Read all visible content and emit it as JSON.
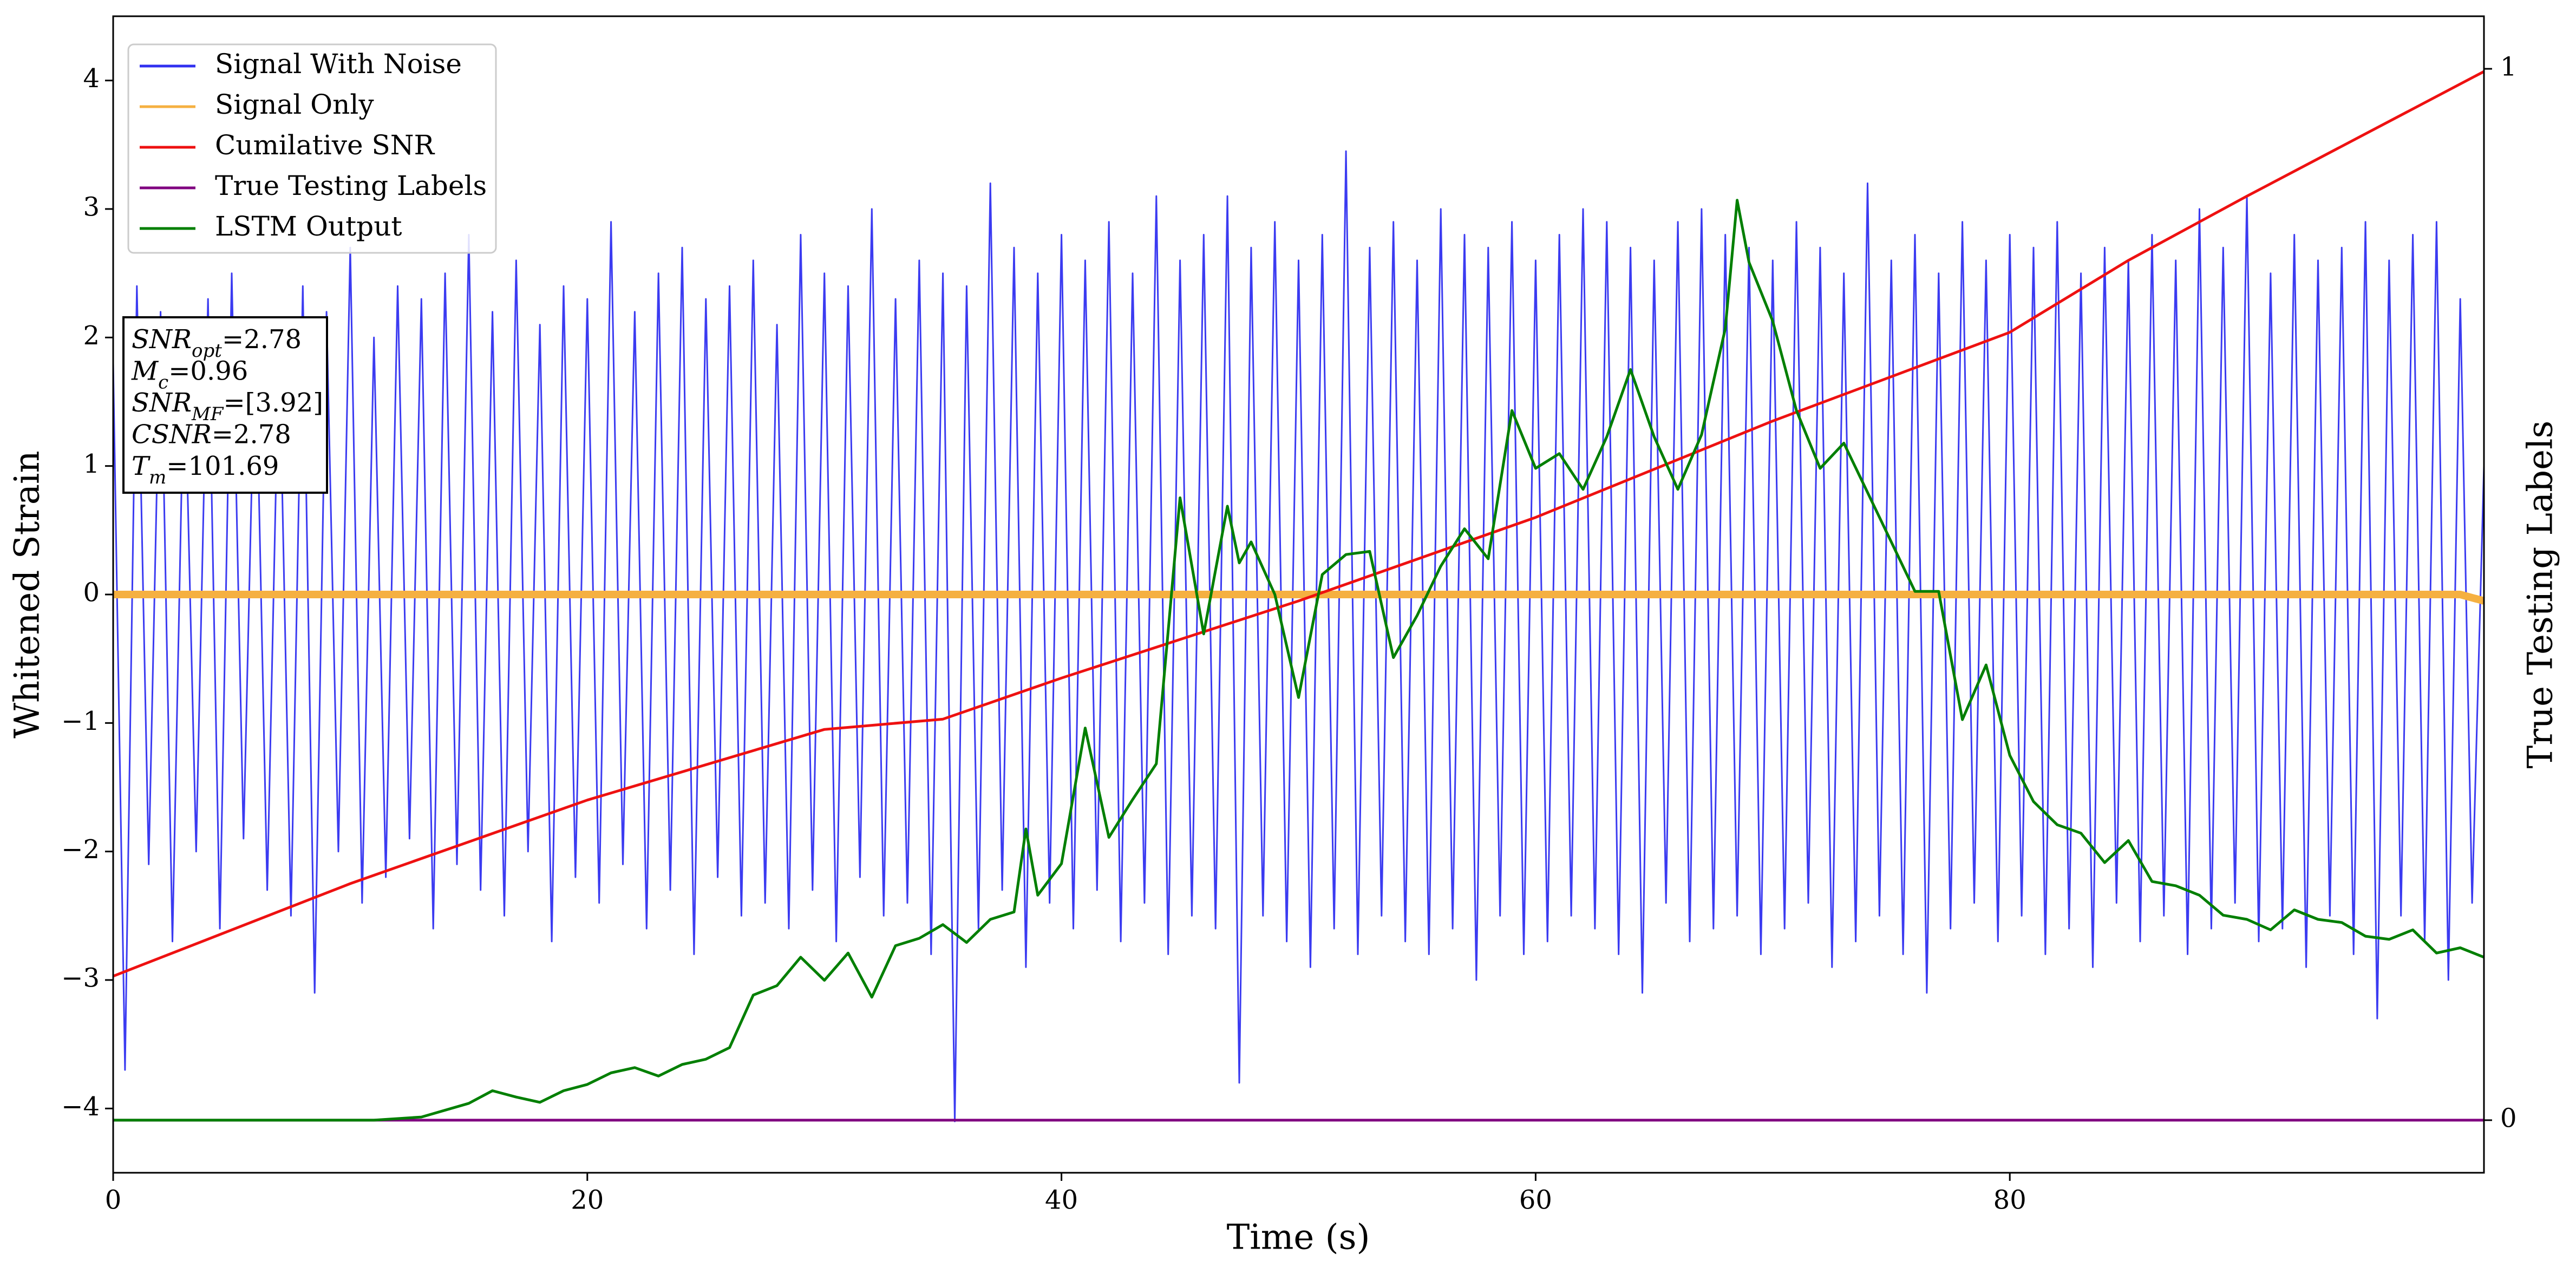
{
  "chart_data": {
    "type": "line",
    "xlabel": "Time (s)",
    "ylabel": "Whitened Strain",
    "y2label": "True Testing Labels",
    "xlim": [
      0,
      100
    ],
    "ylim": [
      -4.5,
      4.5
    ],
    "y2lim": [
      -0.05,
      1.05
    ],
    "xticks": [
      0,
      20,
      40,
      60,
      80
    ],
    "yticks": [
      {
        "value": -4,
        "label": "−4"
      },
      {
        "value": -3,
        "label": "−3"
      },
      {
        "value": -2,
        "label": "−2"
      },
      {
        "value": -1,
        "label": "−1"
      },
      0,
      1,
      2,
      3,
      4
    ],
    "y2ticks": [
      0,
      1
    ],
    "legend": "upper left",
    "annotation": [
      {
        "main": "SNR",
        "sub": "opt",
        "rest": "=2.78"
      },
      {
        "main": "M",
        "sub": "c",
        "rest": "=0.96"
      },
      {
        "main": "SNR",
        "sub": "MF",
        "rest": "=[3.92]"
      },
      {
        "main": "CSNR",
        "sub": null,
        "rest": "=2.78"
      },
      {
        "main": "T",
        "sub": "m",
        "rest": "=101.69"
      }
    ],
    "series": [
      {
        "name": "Signal With Noise",
        "color": "#3030f0",
        "axis": "y",
        "x": [
          0,
          0.5,
          1,
          1.5,
          2,
          2.5,
          3,
          3.5,
          4,
          4.5,
          5,
          5.5,
          6,
          6.5,
          7,
          7.5,
          8,
          8.5,
          9,
          9.5,
          10,
          10.5,
          11,
          11.5,
          12,
          12.5,
          13,
          13.5,
          14,
          14.5,
          15,
          15.5,
          16,
          16.5,
          17,
          17.5,
          18,
          18.5,
          19,
          19.5,
          20,
          20.5,
          21,
          21.5,
          22,
          22.5,
          23,
          23.5,
          24,
          24.5,
          25,
          25.5,
          26,
          26.5,
          27,
          27.5,
          28,
          28.5,
          29,
          29.5,
          30,
          30.5,
          31,
          31.5,
          32,
          32.5,
          33,
          33.5,
          34,
          34.5,
          35,
          35.5,
          36,
          36.5,
          37,
          37.5,
          38,
          38.5,
          39,
          39.5,
          40,
          40.5,
          41,
          41.5,
          42,
          42.5,
          43,
          43.5,
          44,
          44.5,
          45,
          45.5,
          46,
          46.5,
          47,
          47.5,
          48,
          48.5,
          49,
          49.5,
          50,
          50.5,
          51,
          51.5,
          52,
          52.5,
          53,
          53.5,
          54,
          54.5,
          55,
          55.5,
          56,
          56.5,
          57,
          57.5,
          58,
          58.5,
          59,
          59.5,
          60,
          60.5,
          61,
          61.5,
          62,
          62.5,
          63,
          63.5,
          64,
          64.5,
          65,
          65.5,
          66,
          66.5,
          67,
          67.5,
          68,
          68.5,
          69,
          69.5,
          70,
          70.5,
          71,
          71.5,
          72,
          72.5,
          73,
          73.5,
          74,
          74.5,
          75,
          75.5,
          76,
          76.5,
          77,
          77.5,
          78,
          78.5,
          79,
          79.5,
          80,
          80.5,
          81,
          81.5,
          82,
          82.5,
          83,
          83.5,
          84,
          84.5,
          85,
          85.5,
          86,
          86.5,
          87,
          87.5,
          88,
          88.5,
          89,
          89.5,
          90,
          90.5,
          91,
          91.5,
          92,
          92.5,
          93,
          93.5,
          94,
          94.5,
          95,
          95.5,
          96,
          96.5,
          97,
          97.5,
          98,
          98.5,
          99,
          99.5,
          100
        ],
        "values": [
          1.8,
          -3.7,
          2.4,
          -2.1,
          2.2,
          -2.7,
          1.9,
          -2.0,
          2.3,
          -2.6,
          2.5,
          -1.9,
          2.1,
          -2.3,
          2.0,
          -2.5,
          2.4,
          -3.1,
          2.2,
          -2.0,
          2.7,
          -2.4,
          2.0,
          -2.2,
          2.4,
          -1.9,
          2.3,
          -2.6,
          2.5,
          -2.1,
          2.8,
          -2.3,
          2.2,
          -2.5,
          2.6,
          -2.0,
          2.1,
          -2.7,
          2.4,
          -2.2,
          2.3,
          -2.4,
          2.9,
          -2.1,
          2.2,
          -2.6,
          2.5,
          -2.3,
          2.7,
          -2.8,
          2.3,
          -2.2,
          2.4,
          -2.5,
          2.6,
          -2.4,
          2.1,
          -2.6,
          2.8,
          -2.3,
          2.5,
          -2.7,
          2.4,
          -2.2,
          3.0,
          -2.5,
          2.3,
          -2.4,
          2.6,
          -2.8,
          2.5,
          -4.1,
          2.4,
          -2.6,
          3.2,
          -2.3,
          2.7,
          -2.9,
          2.5,
          -2.4,
          2.8,
          -2.6,
          2.6,
          -2.3,
          2.9,
          -2.7,
          2.5,
          -2.4,
          3.1,
          -2.8,
          2.6,
          -2.5,
          2.8,
          -2.6,
          3.1,
          -3.8,
          2.7,
          -2.5,
          2.9,
          -2.7,
          2.6,
          -2.9,
          2.8,
          -2.6,
          3.45,
          -2.8,
          2.7,
          -2.5,
          2.9,
          -2.7,
          2.6,
          -2.8,
          3.0,
          -2.6,
          2.8,
          -3.0,
          2.7,
          -2.5,
          2.9,
          -2.8,
          2.6,
          -2.7,
          2.8,
          -2.5,
          3.0,
          -2.6,
          2.9,
          -2.8,
          2.7,
          -3.1,
          2.6,
          -2.4,
          2.9,
          -2.7,
          3.0,
          -2.6,
          2.8,
          -2.5,
          2.7,
          -2.8,
          2.6,
          -2.6,
          2.9,
          -2.4,
          2.7,
          -2.9,
          2.5,
          -2.7,
          3.2,
          -2.5,
          2.6,
          -2.8,
          2.8,
          -3.1,
          2.5,
          -2.6,
          2.9,
          -2.4,
          2.6,
          -2.7,
          2.8,
          -2.5,
          2.7,
          -2.8,
          2.9,
          -2.6,
          2.5,
          -2.9,
          2.7,
          -2.4,
          2.6,
          -2.7,
          2.8,
          -2.5,
          2.6,
          -2.8,
          3.0,
          -2.6,
          2.7,
          -2.4,
          3.1,
          -2.7,
          2.5,
          -2.6,
          2.8,
          -2.9,
          2.6,
          -2.5,
          2.7,
          -2.8,
          2.9,
          -3.3,
          2.6,
          -2.5,
          2.8,
          -2.7,
          2.9,
          -3.0,
          2.3,
          -2.4,
          1.0
        ]
      },
      {
        "name": "Signal Only",
        "color": "#f5b041",
        "axis": "y",
        "x": [
          0,
          50,
          99,
          100
        ],
        "values": [
          0,
          0,
          0,
          -0.05
        ]
      },
      {
        "name": "Cumilative SNR",
        "color": "#ee1111",
        "axis": "y",
        "x": [
          0,
          10,
          20,
          30,
          35,
          40,
          50,
          60,
          70,
          80,
          85,
          90,
          100
        ],
        "values": [
          -2.97,
          -2.25,
          -1.6,
          -1.05,
          -0.97,
          -0.65,
          -0.05,
          0.6,
          1.35,
          2.04,
          2.6,
          3.1,
          4.07
        ]
      },
      {
        "name": "True Testing Labels",
        "color": "#800080",
        "axis": "y2",
        "x": [
          0,
          100
        ],
        "values": [
          0,
          0
        ]
      },
      {
        "name": "LSTM Output",
        "color": "#007f00",
        "axis": "y2",
        "x": [
          0,
          11,
          13,
          15,
          16,
          17,
          18,
          19,
          20,
          21,
          22,
          23,
          24,
          25,
          26,
          27,
          28,
          29,
          30,
          31,
          32,
          33,
          34,
          35,
          36,
          37,
          38,
          38.5,
          39,
          40,
          41,
          42,
          43,
          44,
          45,
          46,
          47,
          47.5,
          48,
          49,
          50,
          51,
          52,
          53,
          54,
          55,
          56,
          57,
          58,
          59,
          60,
          61,
          62,
          63,
          64,
          65,
          66,
          67,
          68,
          68.5,
          69,
          70,
          71,
          72,
          73,
          74,
          75,
          76,
          77,
          78,
          79,
          80,
          81,
          82,
          83,
          84,
          85,
          86,
          87,
          88,
          89,
          90,
          91,
          92,
          93,
          94,
          95,
          96,
          97,
          98,
          99,
          100
        ],
        "values": [
          0,
          0,
          0.003,
          0.016,
          0.028,
          0.022,
          0.017,
          0.028,
          0.034,
          0.045,
          0.05,
          0.042,
          0.053,
          0.058,
          0.069,
          0.119,
          0.128,
          0.155,
          0.133,
          0.159,
          0.117,
          0.166,
          0.173,
          0.186,
          0.169,
          0.191,
          0.198,
          0.277,
          0.214,
          0.244,
          0.373,
          0.269,
          0.305,
          0.339,
          0.592,
          0.4625,
          0.584,
          0.53,
          0.55,
          0.5,
          0.402,
          0.519,
          0.538,
          0.541,
          0.44,
          0.48,
          0.527,
          0.5625,
          0.534,
          0.675,
          0.62,
          0.634,
          0.6,
          0.65,
          0.714,
          0.65,
          0.6,
          0.652,
          0.753,
          0.875,
          0.816,
          0.76,
          0.675,
          0.62,
          0.644,
          0.597,
          0.55,
          0.503,
          0.503,
          0.381,
          0.433,
          0.347,
          0.303,
          0.281,
          0.273,
          0.245,
          0.266,
          0.227,
          0.223,
          0.214,
          0.195,
          0.191,
          0.181,
          0.2,
          0.191,
          0.188,
          0.175,
          0.172,
          0.181,
          0.159,
          0.164,
          0.155
        ]
      }
    ]
  }
}
